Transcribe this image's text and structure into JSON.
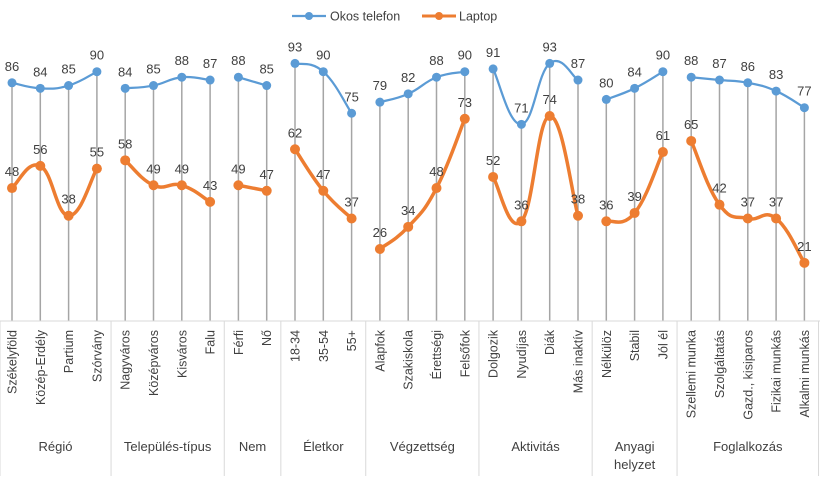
{
  "chart_data": {
    "type": "line",
    "title": "",
    "xlabel": "",
    "ylabel": "",
    "ylim": [
      0,
      100
    ],
    "grid": false,
    "drop_lines": true,
    "legend": {
      "position": "top",
      "entries": [
        "Okos telefon",
        "Laptop"
      ]
    },
    "groups": [
      {
        "name": "Régió",
        "categories": [
          "Székelyföld",
          "Közép-Erdély",
          "Partium",
          "Szórvány"
        ]
      },
      {
        "name": "Település-típus",
        "categories": [
          "Nagyváros",
          "Középváros",
          "Kisváros",
          "Falu"
        ]
      },
      {
        "name": "Nem",
        "categories": [
          "Férfi",
          "Nő"
        ]
      },
      {
        "name": "Életkor",
        "categories": [
          "18-34",
          "35-54",
          "55+"
        ]
      },
      {
        "name": "Végzettség",
        "categories": [
          "Alapfok",
          "Szakiskola",
          "Érettségi",
          "Felsőfok"
        ]
      },
      {
        "name": "Aktivitás",
        "categories": [
          "Dolgozik",
          "Nyudíjas",
          "Diák",
          "Más inaktív"
        ]
      },
      {
        "name": "Anyagi helyzet",
        "name_lines": [
          "Anyagi",
          "helyzet"
        ],
        "categories": [
          "Nélkülöz",
          "Stabil",
          "Jól él"
        ]
      },
      {
        "name": "Foglalkozás",
        "categories": [
          "Szellemi munka",
          "Szolgáltatás",
          "Gazd., kisiparos",
          "Fizikai munkás",
          "Alkalmi munkás"
        ]
      }
    ],
    "series": [
      {
        "name": "Okos telefon",
        "color": "#5B9BD5",
        "values": [
          86,
          84,
          85,
          90,
          84,
          85,
          88,
          87,
          88,
          85,
          93,
          90,
          75,
          79,
          82,
          88,
          90,
          91,
          71,
          93,
          87,
          80,
          84,
          90,
          88,
          87,
          86,
          83,
          77
        ]
      },
      {
        "name": "Laptop",
        "color": "#ED7D31",
        "values": [
          48,
          56,
          38,
          55,
          58,
          49,
          49,
          43,
          49,
          47,
          62,
          47,
          37,
          26,
          34,
          48,
          73,
          52,
          36,
          74,
          38,
          36,
          39,
          61,
          65,
          42,
          37,
          37,
          21
        ]
      }
    ]
  },
  "colors": {
    "drop_line": "#A5A5A5",
    "divider": "#D9D9D9",
    "text": "#404040"
  }
}
